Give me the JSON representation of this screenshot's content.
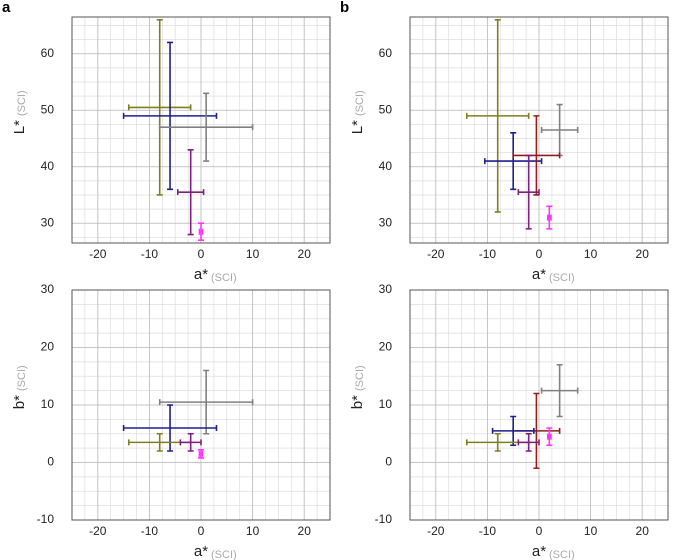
{
  "chart_data": [
    {
      "type": "errorbar",
      "panel": "a",
      "xlabel": "a*",
      "xlabel_unit": "(SCI)",
      "ylabel": "L*",
      "ylabel_unit": "(SCI)",
      "xlim": [
        -25,
        25
      ],
      "xticks": [
        -20,
        -10,
        0,
        10,
        20
      ],
      "ylim": [
        26.5,
        66.5
      ],
      "yticks": [
        30,
        40,
        50,
        60
      ],
      "grid": true,
      "points": [
        {
          "color": "#7f7f1f",
          "x": -8,
          "y": 50.5,
          "xerr": 6,
          "yerr": 15.5
        },
        {
          "color": "#1f1f8f",
          "x": -6,
          "y": 49,
          "xerr": 9,
          "yerr": 13
        },
        {
          "color": "#808080",
          "x": 1,
          "y": 47,
          "xerr": 9,
          "yerr": 6
        },
        {
          "color": "#7f1f7f",
          "x": -2,
          "y": 35.5,
          "xerr": 2.5,
          "yerr": 7.5
        },
        {
          "color": "#ff33ff",
          "x": 0,
          "y": 28.5,
          "xerr": 0.3,
          "yerr": 1.5
        }
      ]
    },
    {
      "type": "errorbar",
      "panel": "b",
      "xlabel": "a*",
      "xlabel_unit": "(SCI)",
      "ylabel": "L*",
      "ylabel_unit": "(SCI)",
      "xlim": [
        -25,
        25
      ],
      "xticks": [
        -20,
        -10,
        0,
        10,
        20
      ],
      "ylim": [
        26.5,
        66.5
      ],
      "yticks": [
        30,
        40,
        50,
        60
      ],
      "grid": true,
      "points": [
        {
          "color": "#7f7f1f",
          "x": -8,
          "y": 49,
          "xerr": 6,
          "yerr": 17
        },
        {
          "color": "#808080",
          "x": 4,
          "y": 46.5,
          "xerr": 3.5,
          "yerr": 4.5
        },
        {
          "color": "#1f1f8f",
          "x": -5,
          "y": 41,
          "xerr": 5.5,
          "yerr": 5
        },
        {
          "color": "#8f1f1f",
          "x": -0.5,
          "y": 42,
          "xerr": 4.5,
          "yerr": 7
        },
        {
          "color": "#7f1f7f",
          "x": -2,
          "y": 35.5,
          "xerr": 2,
          "yerr": 6.5
        },
        {
          "color": "#ff33ff",
          "x": 2,
          "y": 31,
          "xerr": 0.3,
          "yerr": 2
        }
      ]
    },
    {
      "type": "errorbar",
      "xlabel": "a*",
      "xlabel_unit": "(SCI)",
      "ylabel": "b*",
      "ylabel_unit": "(SCI)",
      "xlim": [
        -25,
        25
      ],
      "xticks": [
        -20,
        -10,
        0,
        10,
        20
      ],
      "ylim": [
        -10,
        30
      ],
      "yticks": [
        -10,
        0,
        10,
        20,
        30
      ],
      "grid": true,
      "points": [
        {
          "color": "#808080",
          "x": 1,
          "y": 10.5,
          "xerr": 9,
          "yerr": 5.5
        },
        {
          "color": "#1f1f8f",
          "x": -6,
          "y": 6,
          "xerr": 9,
          "yerr": 4
        },
        {
          "color": "#7f7f1f",
          "x": -8,
          "y": 3.5,
          "xerr": 6,
          "yerr": 1.5
        },
        {
          "color": "#7f1f7f",
          "x": -2,
          "y": 3.5,
          "xerr": 2,
          "yerr": 1.5
        },
        {
          "color": "#ff33ff",
          "x": 0,
          "y": 1.5,
          "xerr": 0.3,
          "yerr": 0.7
        }
      ]
    },
    {
      "type": "errorbar",
      "xlabel": "a*",
      "xlabel_unit": "(SCI)",
      "ylabel": "b*",
      "ylabel_unit": "(SCI)",
      "xlim": [
        -25,
        25
      ],
      "xticks": [
        -20,
        -10,
        0,
        10,
        20
      ],
      "ylim": [
        -10,
        30
      ],
      "yticks": [
        -10,
        0,
        10,
        20,
        30
      ],
      "grid": true,
      "points": [
        {
          "color": "#808080",
          "x": 4,
          "y": 12.5,
          "xerr": 3.5,
          "yerr": 4.5
        },
        {
          "color": "#8f1f1f",
          "x": -0.5,
          "y": 5.5,
          "xerr": 4.5,
          "yerr": 6.5
        },
        {
          "color": "#1f1f8f",
          "x": -5,
          "y": 5.5,
          "xerr": 4,
          "yerr": 2.5
        },
        {
          "color": "#7f7f1f",
          "x": -8,
          "y": 3.5,
          "xerr": 6,
          "yerr": 1.5
        },
        {
          "color": "#7f1f7f",
          "x": -2,
          "y": 3.5,
          "xerr": 2,
          "yerr": 1.5
        },
        {
          "color": "#ff33ff",
          "x": 2,
          "y": 4.5,
          "xerr": 0.3,
          "yerr": 1.5
        }
      ]
    }
  ]
}
